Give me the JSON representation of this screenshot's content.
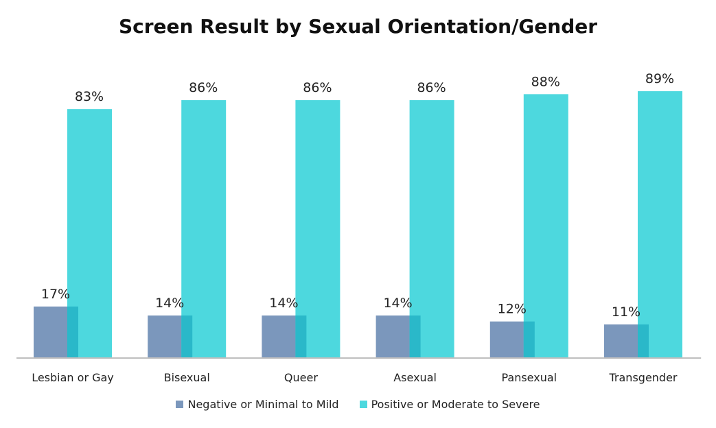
{
  "chart_data": {
    "type": "bar",
    "title": "Screen Result by Sexual Orientation/Gender",
    "categories": [
      "Lesbian or Gay",
      "Bisexual",
      "Queer",
      "Asexual",
      "Pansexual",
      "Transgender"
    ],
    "series": [
      {
        "name": "Negative or Minimal to Mild",
        "values": [
          17,
          14,
          14,
          14,
          12,
          11
        ],
        "labels": [
          "17%",
          "14%",
          "14%",
          "14%",
          "12%",
          "11%"
        ],
        "color": "#7b97bc"
      },
      {
        "name": "Positive or Moderate to Severe",
        "values": [
          83,
          86,
          86,
          86,
          88,
          89
        ],
        "labels": [
          "83%",
          "86%",
          "86%",
          "86%",
          "88%",
          "89%"
        ],
        "color": "#4dd8de"
      }
    ],
    "overlap_color": "#2ab8c9",
    "ylim": [
      0,
      100
    ],
    "grid": false,
    "legend": "bottom"
  }
}
